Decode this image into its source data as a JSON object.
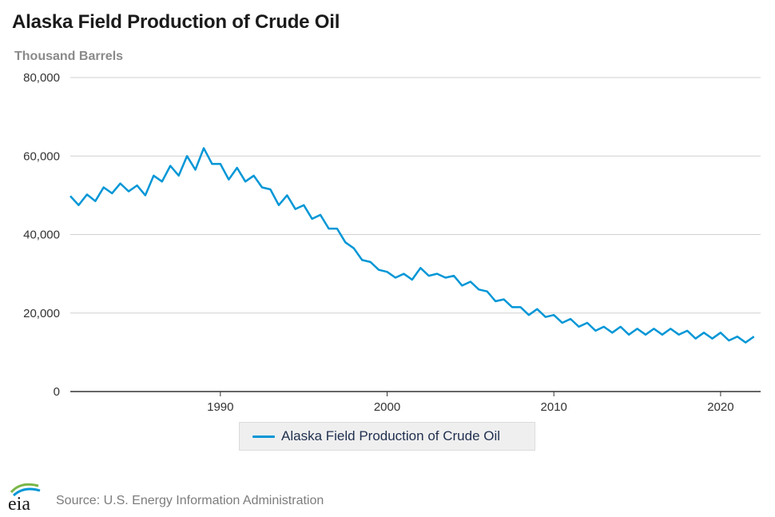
{
  "title": "Alaska Field Production of Crude Oil",
  "subtitle": "Thousand Barrels",
  "source": "Source: U.S. Energy Information Administration",
  "logo_text": "eia",
  "colors": {
    "line": "#0096d6",
    "grid": "#cfcfcf",
    "axis": "#333333",
    "logo_green": "#7ab648",
    "logo_blue": "#0096d6"
  },
  "chart_data": {
    "type": "line",
    "title": "Alaska Field Production of Crude Oil",
    "ylabel": "Thousand Barrels",
    "xlabel": "",
    "ylim": [
      0,
      80000
    ],
    "xlim": [
      1981.0,
      2022.4
    ],
    "yticks": [
      0,
      20000,
      40000,
      60000,
      80000
    ],
    "ytick_labels": [
      "0",
      "20,000",
      "40,000",
      "60,000",
      "80,000"
    ],
    "xticks": [
      1990,
      2000,
      2010,
      2020
    ],
    "xtick_labels": [
      "1990",
      "2000",
      "2010",
      "2020"
    ],
    "grid": true,
    "legend_position": "bottom-center",
    "series": [
      {
        "name": "Alaska Field Production of Crude Oil",
        "x": [
          1981.0,
          1981.5,
          1982.0,
          1982.5,
          1983.0,
          1983.5,
          1984.0,
          1984.5,
          1985.0,
          1985.5,
          1986.0,
          1986.5,
          1987.0,
          1987.5,
          1988.0,
          1988.5,
          1989.0,
          1989.5,
          1990.0,
          1990.5,
          1991.0,
          1991.5,
          1992.0,
          1992.5,
          1993.0,
          1993.5,
          1994.0,
          1994.5,
          1995.0,
          1995.5,
          1996.0,
          1996.5,
          1997.0,
          1997.5,
          1998.0,
          1998.5,
          1999.0,
          1999.5,
          2000.0,
          2000.5,
          2001.0,
          2001.5,
          2002.0,
          2002.5,
          2003.0,
          2003.5,
          2004.0,
          2004.5,
          2005.0,
          2005.5,
          2006.0,
          2006.5,
          2007.0,
          2007.5,
          2008.0,
          2008.5,
          2009.0,
          2009.5,
          2010.0,
          2010.5,
          2011.0,
          2011.5,
          2012.0,
          2012.5,
          2013.0,
          2013.5,
          2014.0,
          2014.5,
          2015.0,
          2015.5,
          2016.0,
          2016.5,
          2017.0,
          2017.5,
          2018.0,
          2018.5,
          2019.0,
          2019.5,
          2020.0,
          2020.5,
          2021.0,
          2021.5,
          2022.0
        ],
        "values": [
          49800,
          47500,
          50200,
          48500,
          52000,
          50500,
          53000,
          51000,
          52500,
          50000,
          55000,
          53500,
          57500,
          55000,
          60000,
          56500,
          62000,
          58000,
          58000,
          54000,
          57000,
          53500,
          55000,
          52000,
          51500,
          47500,
          50000,
          46500,
          47500,
          44000,
          45000,
          41500,
          41500,
          38000,
          36500,
          33500,
          33000,
          31000,
          30500,
          29000,
          30000,
          28500,
          31500,
          29500,
          30000,
          29000,
          29500,
          27000,
          28000,
          26000,
          25500,
          23000,
          23500,
          21500,
          21500,
          19500,
          21000,
          19000,
          19500,
          17500,
          18500,
          16500,
          17500,
          15500,
          16500,
          15000,
          16500,
          14500,
          16000,
          14500,
          16000,
          14500,
          16000,
          14500,
          15500,
          13500,
          15000,
          13500,
          15000,
          13000,
          14000,
          12500,
          14000
        ]
      }
    ]
  }
}
